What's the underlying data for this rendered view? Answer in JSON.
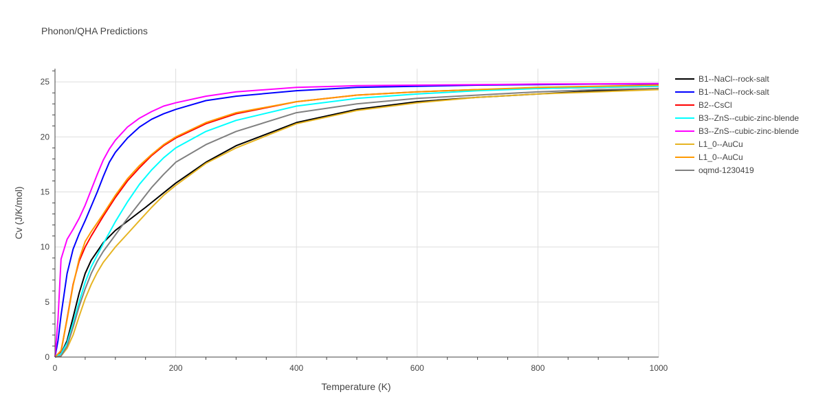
{
  "chart_data": {
    "type": "line",
    "title": "Phonon/QHA Predictions",
    "xlabel": "Temperature (K)",
    "ylabel": "Cv (J/K/mol)",
    "xlim": [
      0,
      1000
    ],
    "ylim": [
      0,
      26.2
    ],
    "xticks": [
      0,
      200,
      400,
      600,
      800,
      1000
    ],
    "yticks": [
      0,
      5,
      10,
      15,
      20,
      25
    ],
    "grid": true,
    "legend_position": "right",
    "series": [
      {
        "name": "B1--NaCl--rock-salt",
        "color": "#000000",
        "x": [
          0,
          10,
          20,
          30,
          40,
          50,
          60,
          80,
          100,
          150,
          200,
          250,
          300,
          400,
          500,
          600,
          700,
          800,
          900,
          1000
        ],
        "y": [
          0,
          0.3,
          1.5,
          3.6,
          5.8,
          7.6,
          8.8,
          10.4,
          11.5,
          13.6,
          15.8,
          17.7,
          19.2,
          21.3,
          22.5,
          23.2,
          23.6,
          23.9,
          24.2,
          24.4
        ]
      },
      {
        "name": "B1--NaCl--rock-salt",
        "color": "#0000ff",
        "x": [
          0,
          5,
          10,
          20,
          30,
          40,
          50,
          60,
          70,
          80,
          90,
          100,
          120,
          140,
          160,
          180,
          200,
          250,
          300,
          400,
          500,
          600,
          700,
          800,
          900,
          1000
        ],
        "y": [
          0,
          1.5,
          3.8,
          7.6,
          9.8,
          11.2,
          12.4,
          13.7,
          15.0,
          16.4,
          17.7,
          18.6,
          19.9,
          20.9,
          21.6,
          22.1,
          22.5,
          23.3,
          23.7,
          24.2,
          24.5,
          24.6,
          24.7,
          24.75,
          24.8,
          24.8
        ]
      },
      {
        "name": "B2--CsCl",
        "color": "#ff0000",
        "x": [
          0,
          10,
          20,
          30,
          40,
          50,
          60,
          70,
          80,
          100,
          120,
          140,
          160,
          180,
          200,
          250,
          300,
          400,
          500,
          600,
          700,
          800,
          900,
          1000
        ],
        "y": [
          0,
          0.5,
          3.5,
          6.6,
          8.7,
          10.0,
          11.0,
          11.9,
          12.8,
          14.5,
          16.0,
          17.2,
          18.3,
          19.2,
          19.9,
          21.2,
          22.1,
          23.2,
          23.8,
          24.1,
          24.3,
          24.4,
          24.5,
          24.6
        ]
      },
      {
        "name": "B3--ZnS--cubic-zinc-blende",
        "color": "#00ffff",
        "x": [
          0,
          10,
          20,
          30,
          40,
          50,
          60,
          80,
          100,
          120,
          140,
          160,
          180,
          200,
          250,
          300,
          400,
          500,
          600,
          700,
          800,
          900,
          1000
        ],
        "y": [
          0,
          0.3,
          1.3,
          3.1,
          5.0,
          6.8,
          8.2,
          10.3,
          12.3,
          14.1,
          15.7,
          17.0,
          18.1,
          19.0,
          20.5,
          21.5,
          22.8,
          23.5,
          23.9,
          24.2,
          24.4,
          24.5,
          24.6
        ]
      },
      {
        "name": "B3--ZnS--cubic-zinc-blende",
        "color": "#ff00ff",
        "x": [
          0,
          5,
          10,
          20,
          30,
          40,
          50,
          60,
          70,
          80,
          90,
          100,
          120,
          140,
          160,
          180,
          200,
          250,
          300,
          400,
          500,
          600,
          700,
          800,
          900,
          1000
        ],
        "y": [
          0,
          3.5,
          8.9,
          10.7,
          11.6,
          12.6,
          13.8,
          15.2,
          16.6,
          17.9,
          18.9,
          19.7,
          20.9,
          21.7,
          22.3,
          22.8,
          23.1,
          23.7,
          24.1,
          24.5,
          24.65,
          24.7,
          24.75,
          24.8,
          24.82,
          24.85
        ]
      },
      {
        "name": "L1_0--AuCu",
        "color": "#e6b422",
        "x": [
          0,
          10,
          20,
          30,
          40,
          50,
          60,
          70,
          80,
          100,
          120,
          140,
          160,
          180,
          200,
          250,
          300,
          400,
          500,
          600,
          700,
          800,
          900,
          1000
        ],
        "y": [
          0,
          0.1,
          0.8,
          2.0,
          3.7,
          5.3,
          6.6,
          7.7,
          8.6,
          10.0,
          11.2,
          12.4,
          13.6,
          14.7,
          15.6,
          17.6,
          19.0,
          21.2,
          22.4,
          23.1,
          23.6,
          23.9,
          24.1,
          24.3
        ]
      },
      {
        "name": "L1_0--AuCu",
        "color": "#ff9900",
        "x": [
          0,
          10,
          20,
          30,
          40,
          50,
          60,
          70,
          80,
          100,
          120,
          140,
          160,
          180,
          200,
          250,
          300,
          400,
          500,
          600,
          700,
          800,
          900,
          1000
        ],
        "y": [
          0,
          0.6,
          3.4,
          6.5,
          8.9,
          10.5,
          11.4,
          12.2,
          13.0,
          14.7,
          16.2,
          17.4,
          18.4,
          19.3,
          20.0,
          21.3,
          22.2,
          23.2,
          23.8,
          24.1,
          24.3,
          24.5,
          24.6,
          24.7
        ]
      },
      {
        "name": "oqmd-1230419",
        "color": "#808080",
        "x": [
          0,
          10,
          20,
          30,
          40,
          50,
          60,
          70,
          80,
          100,
          120,
          140,
          160,
          180,
          200,
          250,
          300,
          400,
          500,
          600,
          700,
          800,
          900,
          1000
        ],
        "y": [
          0,
          0.1,
          1.0,
          2.7,
          4.6,
          6.2,
          7.6,
          8.7,
          9.6,
          11.1,
          12.6,
          14.0,
          15.4,
          16.6,
          17.7,
          19.3,
          20.5,
          22.2,
          23.0,
          23.5,
          23.8,
          24.1,
          24.3,
          24.4
        ]
      }
    ]
  }
}
